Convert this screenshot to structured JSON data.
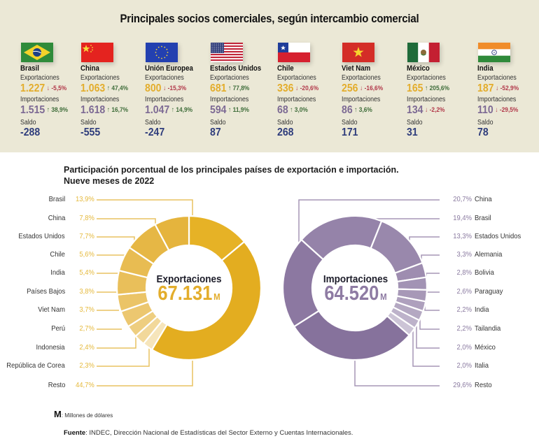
{
  "header": {
    "title": "Principales socios comerciales, según intercambio comercial"
  },
  "labels": {
    "exports": "Exportaciones",
    "imports": "Importaciones",
    "balance": "Saldo"
  },
  "partners": [
    {
      "name": "Brasil",
      "flag": "brazil-flag",
      "exports": "1.227",
      "exports_change": "-5,5%",
      "exports_dir": "down",
      "imports": "1.515",
      "imports_change": "38,9%",
      "imports_dir": "up",
      "balance": "-288"
    },
    {
      "name": "China",
      "flag": "china-flag",
      "exports": "1.063",
      "exports_change": "47,4%",
      "exports_dir": "up",
      "imports": "1.618",
      "imports_change": "16,7%",
      "imports_dir": "up",
      "balance": "-555"
    },
    {
      "name": "Unión Europea",
      "flag": "eu-flag",
      "exports": "800",
      "exports_change": "-15,3%",
      "exports_dir": "down",
      "imports": "1.047",
      "imports_change": "14,9%",
      "imports_dir": "up",
      "balance": "-247"
    },
    {
      "name": "Estados Unidos",
      "flag": "usa-flag",
      "exports": "681",
      "exports_change": "77,8%",
      "exports_dir": "up",
      "imports": "594",
      "imports_change": "11,9%",
      "imports_dir": "up",
      "balance": "87"
    },
    {
      "name": "Chile",
      "flag": "chile-flag",
      "exports": "336",
      "exports_change": "-20,6%",
      "exports_dir": "down",
      "imports": "68",
      "imports_change": "3,0%",
      "imports_dir": "up",
      "balance": "268"
    },
    {
      "name": "Viet Nam",
      "flag": "vietnam-flag",
      "exports": "256",
      "exports_change": "-16,6%",
      "exports_dir": "down",
      "imports": "86",
      "imports_change": "3,6%",
      "imports_dir": "up",
      "balance": "171"
    },
    {
      "name": "México",
      "flag": "mexico-flag",
      "exports": "165",
      "exports_change": "205,6%",
      "exports_dir": "up",
      "imports": "134",
      "imports_change": "-2,2%",
      "imports_dir": "down",
      "balance": "31"
    },
    {
      "name": "India",
      "flag": "india-flag",
      "exports": "187",
      "exports_change": "-52,9%",
      "exports_dir": "down",
      "imports": "110",
      "imports_change": "-29,5%",
      "imports_dir": "down",
      "balance": "78"
    }
  ],
  "section": {
    "title_line1": "Participación porcentual de los principales países de exportación e importación.",
    "title_line2": "Nueve meses de 2022"
  },
  "chart_data": [
    {
      "type": "pie",
      "variant": "donut",
      "title": "Exportaciones",
      "total": "67.131",
      "unit": "M",
      "color": "#e3ad2c",
      "categories": [
        "Brasil",
        "China",
        "Estados Unidos",
        "Chile",
        "India",
        "Países Bajos",
        "Viet Nam",
        "Perú",
        "Indonesia",
        "República de Corea",
        "Resto"
      ],
      "values": [
        13.9,
        7.8,
        7.7,
        5.6,
        5.4,
        3.8,
        3.7,
        2.7,
        2.4,
        2.3,
        44.7
      ],
      "labels": [
        "13,9%",
        "7,8%",
        "7,7%",
        "5,6%",
        "5,4%",
        "3,8%",
        "3,7%",
        "2,7%",
        "2,4%",
        "2,3%",
        "44,7%"
      ],
      "legend_position": "left"
    },
    {
      "type": "pie",
      "variant": "donut",
      "title": "Importaciones",
      "total": "64.520",
      "unit": "M",
      "color": "#8e7ba3",
      "categories": [
        "China",
        "Brasil",
        "Estados Unidos",
        "Alemania",
        "Bolivia",
        "Paraguay",
        "India",
        "Tailandia",
        "México",
        "Italia",
        "Resto"
      ],
      "values": [
        20.7,
        19.4,
        13.3,
        3.3,
        2.8,
        2.6,
        2.2,
        2.2,
        2.0,
        2.0,
        29.6
      ],
      "labels": [
        "20,7%",
        "19,4%",
        "13,3%",
        "3,3%",
        "2,8%",
        "2,6%",
        "2,2%",
        "2,2%",
        "2,0%",
        "2,0%",
        "29,6%"
      ],
      "legend_position": "right"
    }
  ],
  "footer": {
    "note_key": "M",
    "note_text": ": Millones de dólares",
    "source_key": "Fuente",
    "source_text": ": INDEC, Dirección Nacional de Estadísticas del Sector Externo y Cuentas Internacionales."
  }
}
